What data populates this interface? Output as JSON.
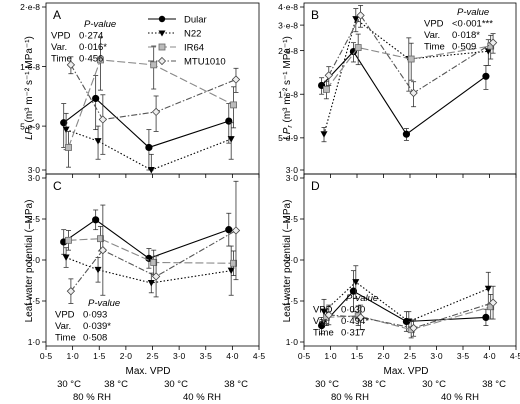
{
  "chart_data": [
    {
      "panel": "A",
      "type": "line",
      "x": [
        0.9,
        1.5,
        2.5,
        4.0
      ],
      "ylim": [
        3e-09,
        2e-08
      ],
      "y_ticks": [
        "2·e-8",
        "1·e-8",
        "5·e-9",
        "3·0"
      ],
      "y_scale": "log",
      "series": [
        {
          "name": "Dular",
          "values": [
            5.2e-09,
            6.9e-09,
            3.9e-09,
            5.3e-09
          ],
          "err": [
            1.3e-09,
            2.1e-09,
            9e-10,
            1.2e-09
          ]
        },
        {
          "name": "N22",
          "values": [
            4.8e-09,
            4.2e-09,
            3e-09,
            4.3e-09
          ],
          "err": [
            1e-09,
            8e-10,
            6e-10,
            9e-10
          ]
        },
        {
          "name": "IR64",
          "values": [
            3.9e-09,
            1.08e-08,
            1.02e-08,
            6.4e-09
          ],
          "err": [
            8e-10,
            3.2e-09,
            2.5e-09,
            1.5e-09
          ]
        },
        {
          "name": "MTU1010",
          "values": [
            1.02e-08,
            5.4e-09,
            5.9e-09,
            8.6e-09
          ],
          "err": [
            1e-09,
            1.8e-09,
            1.2e-09,
            1.2e-09
          ]
        }
      ],
      "stats_header": "P-value",
      "stats": [
        {
          "label": "VPD",
          "value": "0·274"
        },
        {
          "label": "Var.",
          "value": "0·016*"
        },
        {
          "label": "Time",
          "value": "0·456"
        }
      ]
    },
    {
      "panel": "B",
      "type": "line",
      "x": [
        0.9,
        1.5,
        2.5,
        4.0
      ],
      "ylim": [
        3e-09,
        4e-08
      ],
      "y_ticks": [
        "4·e-8",
        "3·e-8",
        "2·e-8",
        "1·e-8",
        "5·e-9",
        "3·0"
      ],
      "y_scale": "log",
      "series": [
        {
          "name": "Dular",
          "values": [
            1.15e-08,
            1.97e-08,
            5.3e-09,
            1.33e-08
          ],
          "err": [
            1.5e-09,
            3e-09,
            5e-10,
            2.5e-09
          ]
        },
        {
          "name": "N22",
          "values": [
            5.3e-09,
            3.3e-08,
            1.75e-08,
            1.98e-08
          ],
          "err": [
            6e-10,
            6e-09,
            7e-09,
            4e-09
          ]
        },
        {
          "name": "IR64",
          "values": [
            1.08e-08,
            2.1e-08,
            1.75e-08,
            2.15e-08
          ],
          "err": [
            1.5e-09,
            5e-09,
            5e-09,
            4e-09
          ]
        },
        {
          "name": "MTU1010",
          "values": [
            1.35e-08,
            3.5e-08,
            1.02e-08,
            2.27e-08
          ],
          "err": [
            2e-09,
            6e-09,
            2e-09,
            3.5e-09
          ]
        }
      ],
      "stats_header": "P-value",
      "stats": [
        {
          "label": "VPD",
          "value": "<0·001***"
        },
        {
          "label": "Var.",
          "value": "0·018*"
        },
        {
          "label": "Time",
          "value": "0·509"
        }
      ]
    },
    {
      "panel": "C",
      "type": "line",
      "x": [
        0.9,
        1.5,
        2.5,
        4.0
      ],
      "ylim": [
        1.0,
        3.0
      ],
      "y_ticks": [
        "3·0",
        "2·5",
        "2·0",
        "1·5",
        "1·0"
      ],
      "series": [
        {
          "name": "Dular",
          "values": [
            2.22,
            2.49,
            2.02,
            2.37
          ],
          "err": [
            0.15,
            0.12,
            0.12,
            0.2
          ]
        },
        {
          "name": "N22",
          "values": [
            2.03,
            1.88,
            1.72,
            1.87
          ],
          "err": [
            0.12,
            0.15,
            0.12,
            0.3
          ]
        },
        {
          "name": "IR64",
          "values": [
            2.24,
            2.26,
            1.97,
            1.96
          ],
          "err": [
            0.12,
            0.15,
            0.15,
            0.15
          ]
        },
        {
          "name": "MTU1010",
          "values": [
            1.62,
            2.12,
            1.8,
            2.36
          ],
          "err": [
            0.15,
            0.55,
            0.25,
            0.6
          ]
        }
      ],
      "stats_header": "P-value",
      "stats": [
        {
          "label": "VPD",
          "value": "0·093"
        },
        {
          "label": "Var.",
          "value": "0·039*"
        },
        {
          "label": "Time",
          "value": "0·508"
        }
      ]
    },
    {
      "panel": "D",
      "type": "line",
      "x": [
        0.9,
        1.5,
        2.5,
        4.0
      ],
      "ylim": [
        1.0,
        3.0
      ],
      "y_ticks": [
        "3·0",
        "2·5",
        "2·0",
        "1·5",
        "1·0"
      ],
      "series": [
        {
          "name": "Dular",
          "values": [
            1.2,
            1.62,
            1.25,
            1.3
          ],
          "err": [
            0.1,
            0.25,
            0.12,
            0.1
          ]
        },
        {
          "name": "N22",
          "values": [
            1.37,
            1.73,
            1.25,
            1.65
          ],
          "err": [
            0.15,
            0.2,
            0.12,
            0.2
          ]
        },
        {
          "name": "IR64",
          "values": [
            1.3,
            1.32,
            1.15,
            1.43
          ],
          "err": [
            0.1,
            0.12,
            0.1,
            0.15
          ]
        },
        {
          "name": "MTU1010",
          "values": [
            1.33,
            1.3,
            1.17,
            1.48
          ],
          "err": [
            0.12,
            0.15,
            0.1,
            0.2
          ]
        }
      ],
      "stats_header": "P-value",
      "stats": [
        {
          "label": "VPD",
          "value": "0·030"
        },
        {
          "label": "Var.",
          "value": "0·494*"
        },
        {
          "label": "Time",
          "value": "0·317"
        }
      ]
    }
  ],
  "shared": {
    "xlim": [
      0.5,
      4.5
    ],
    "x_ticks": [
      "0·5",
      "1·0",
      "1·5",
      "2·0",
      "2·5",
      "3·0",
      "3·5",
      "4·0",
      "4·5"
    ],
    "xlabel": "Max. VPD",
    "ylabel_top_prefix": "LP",
    "ylabel_top_sub": "r",
    "ylabel_top_units": " (m³ m⁻² s⁻¹ MPa⁻¹)",
    "ylabel_bottom": "Leaf water potential (–MPa)",
    "legend": [
      "Dular",
      "N22",
      "IR64",
      "MTU1010"
    ],
    "temps": [
      "30 °C",
      "38 °C",
      "30 °C",
      "38 °C"
    ],
    "rh": [
      "80 % RH",
      "40 % RH"
    ]
  },
  "colors": {
    "Dular": "#000000",
    "N22": "#000000",
    "IR64": "#888888",
    "MTU1010": "#555555"
  }
}
